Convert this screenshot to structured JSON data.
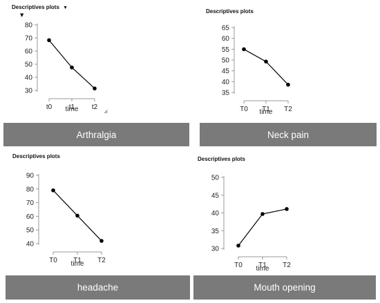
{
  "colors": {
    "caption_bg": "#7a7a7a",
    "caption_text": "#ffffff",
    "line": "#000000",
    "axis": "#999999"
  },
  "panels": [
    {
      "title": "Descriptives plots",
      "dropdown_icon": "triangle-down-icon",
      "caption": "Arthralgia",
      "chart_data": {
        "type": "line",
        "title": "",
        "xlabel": "time",
        "ylabel": "",
        "categories": [
          "t0",
          "t1",
          "t2"
        ],
        "series": [
          {
            "values": [
              68.3,
              47.5,
              31.5
            ]
          }
        ],
        "ylim": [
          30,
          80
        ],
        "yticks": [
          30,
          40,
          50,
          60,
          70,
          80
        ],
        "grid": false
      }
    },
    {
      "title": "Descriptives plots",
      "caption": "Neck pain",
      "chart_data": {
        "type": "line",
        "title": "",
        "xlabel": "time",
        "ylabel": "",
        "categories": [
          "T0",
          "T1",
          "T2"
        ],
        "series": [
          {
            "values": [
              55.0,
              49.3,
              38.6
            ]
          }
        ],
        "ylim": [
          35,
          65
        ],
        "yticks": [
          35,
          40,
          45,
          50,
          55,
          60,
          65
        ],
        "grid": false
      }
    },
    {
      "title": "Descriptives plots",
      "caption": "headache",
      "chart_data": {
        "type": "line",
        "title": "",
        "xlabel": "time",
        "ylabel": "",
        "categories": [
          "T0",
          "T1",
          "T2"
        ],
        "series": [
          {
            "values": [
              79.0,
              60.5,
              42.0
            ]
          }
        ],
        "ylim": [
          40,
          90
        ],
        "yticks": [
          40,
          50,
          60,
          70,
          80,
          90
        ],
        "grid": false
      }
    },
    {
      "title": "Descriptives plots",
      "caption": "Mouth opening",
      "chart_data": {
        "type": "line",
        "title": "",
        "xlabel": "time",
        "ylabel": "",
        "categories": [
          "T0",
          "T1",
          "T2"
        ],
        "series": [
          {
            "values": [
              30.8,
              39.7,
              41.1
            ]
          }
        ],
        "ylim": [
          30,
          50
        ],
        "yticks": [
          30,
          35,
          40,
          45,
          50
        ],
        "grid": false
      }
    }
  ]
}
